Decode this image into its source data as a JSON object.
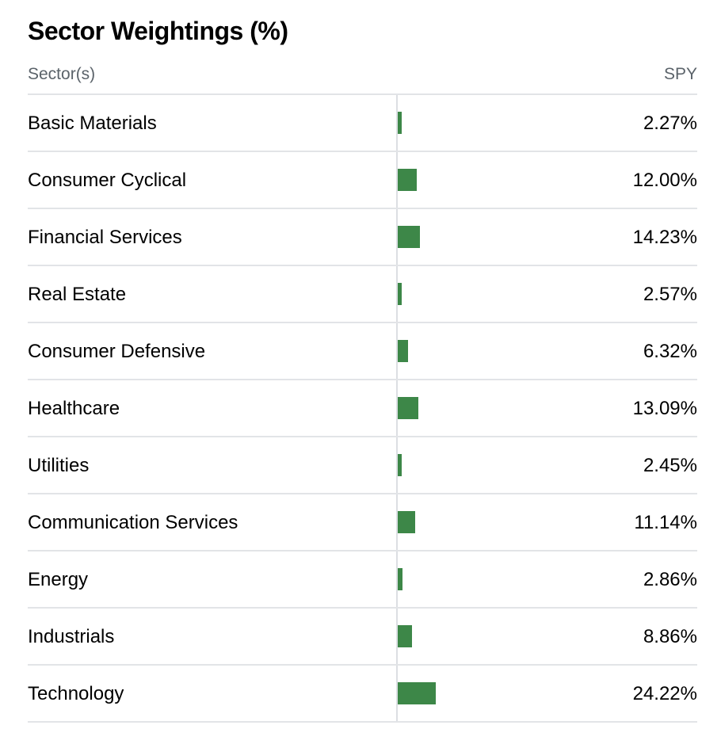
{
  "title": "Sector Weightings (%)",
  "header": {
    "sector_label": "Sector(s)",
    "fund_label": "SPY"
  },
  "colors": {
    "bar": "#3d8748",
    "divider": "#e2e4e7",
    "header_text": "#5b636a"
  },
  "sectors": [
    {
      "name": "Basic Materials",
      "value": 2.27,
      "label": "2.27%"
    },
    {
      "name": "Consumer Cyclical",
      "value": 12.0,
      "label": "12.00%"
    },
    {
      "name": "Financial Services",
      "value": 14.23,
      "label": "14.23%"
    },
    {
      "name": "Real Estate",
      "value": 2.57,
      "label": "2.57%"
    },
    {
      "name": "Consumer Defensive",
      "value": 6.32,
      "label": "6.32%"
    },
    {
      "name": "Healthcare",
      "value": 13.09,
      "label": "13.09%"
    },
    {
      "name": "Utilities",
      "value": 2.45,
      "label": "2.45%"
    },
    {
      "name": "Communication Services",
      "value": 11.14,
      "label": "11.14%"
    },
    {
      "name": "Energy",
      "value": 2.86,
      "label": "2.86%"
    },
    {
      "name": "Industrials",
      "value": 8.86,
      "label": "8.86%"
    },
    {
      "name": "Technology",
      "value": 24.22,
      "label": "24.22%"
    }
  ]
}
